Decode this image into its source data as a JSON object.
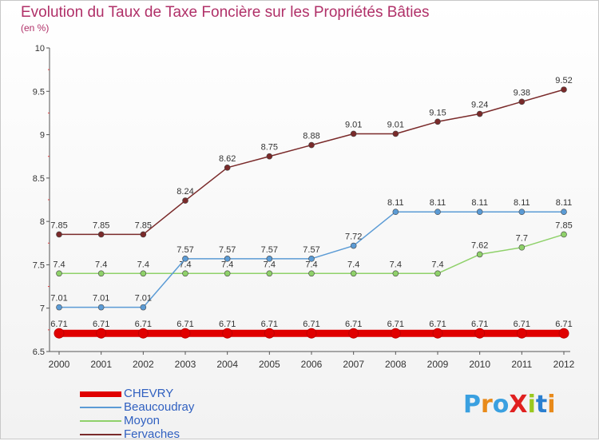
{
  "title": "Evolution du Taux de Taxe Foncière sur les Propriétés Bâties",
  "subtitle": "(en %)",
  "logo": {
    "text": "ProXiti",
    "colors": [
      "#3aa0e0",
      "#e88a1a",
      "#3aa0e0",
      "#e02020",
      "#9ac81e",
      "#2a7fd0",
      "#e88a1a"
    ]
  },
  "chart_data": {
    "type": "line",
    "x": [
      "2000",
      "2001",
      "2002",
      "2003",
      "2004",
      "2005",
      "2006",
      "2007",
      "2008",
      "2009",
      "2010",
      "2011",
      "2012"
    ],
    "ylim": [
      6.5,
      10
    ],
    "yticks": [
      6.5,
      7,
      7.5,
      8,
      8.5,
      9,
      9.5,
      10
    ],
    "ytick_labels": [
      "6.5",
      "7",
      "7.5",
      "8",
      "8.5",
      "9",
      "9.5",
      "10"
    ],
    "grid": false,
    "legend_position": "bottom-left",
    "series": [
      {
        "name": "CHEVRY",
        "color": "#e00000",
        "values": [
          6.71,
          6.71,
          6.71,
          6.71,
          6.71,
          6.71,
          6.71,
          6.71,
          6.71,
          6.71,
          6.71,
          6.71,
          6.71
        ],
        "labels": [
          "6.71",
          "6.71",
          "6.71",
          "6.71",
          "6.71",
          "6.71",
          "6.71",
          "6.71",
          "6.71",
          "6.71",
          "6.71",
          "6.71",
          "6.71"
        ]
      },
      {
        "name": "Beaucoudray",
        "color": "#5b9bd5",
        "values": [
          7.01,
          7.01,
          7.01,
          7.57,
          7.57,
          7.57,
          7.57,
          7.72,
          8.11,
          8.11,
          8.11,
          8.11,
          8.11
        ],
        "labels": [
          "7.01",
          "7.01",
          "7.01",
          "7.57",
          "7.57",
          "7.57",
          "7.57",
          "7.72",
          "8.11",
          "8.11",
          "8.11",
          "8.11",
          "8.11"
        ]
      },
      {
        "name": "Moyon",
        "color": "#8fd16a",
        "values": [
          7.4,
          7.4,
          7.4,
          7.4,
          7.4,
          7.4,
          7.4,
          7.4,
          7.4,
          7.4,
          7.62,
          7.7,
          7.85
        ],
        "labels": [
          "7.4",
          "7.4",
          "7.4",
          "7.4",
          "7.4",
          "7.4",
          "7.4",
          "7.4",
          "7.4",
          "7.4",
          "7.62",
          "7.7",
          "7.85"
        ]
      },
      {
        "name": "Fervaches",
        "color": "#7a2a2a",
        "values": [
          7.85,
          7.85,
          7.85,
          8.24,
          8.62,
          8.75,
          8.88,
          9.01,
          9.01,
          9.15,
          9.24,
          9.38,
          9.52
        ],
        "labels": [
          "7.85",
          "7.85",
          "7.85",
          "8.24",
          "8.62",
          "8.75",
          "8.88",
          "9.01",
          "9.01",
          "9.15",
          "9.24",
          "9.38",
          "9.52"
        ]
      }
    ]
  }
}
